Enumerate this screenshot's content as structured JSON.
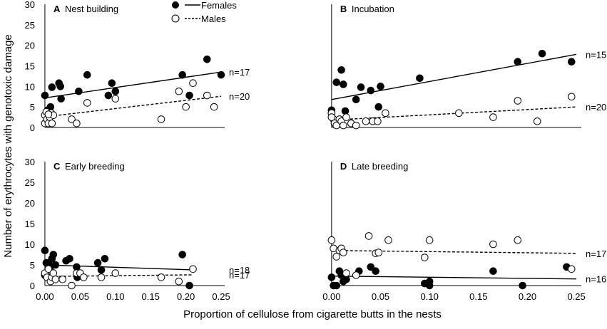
{
  "chart_data": {
    "type": "scatter",
    "ylabel": "Number of erythrocytes with genotoxic damage",
    "xlabel": "Proportion of cellulose from cigarette butts in the nests",
    "x_ticks": [
      "0.00",
      "0.05",
      "0.10",
      "0.15",
      "0.20",
      "0.25"
    ],
    "x_tick_values": [
      0,
      0.05,
      0.1,
      0.15,
      0.2,
      0.25
    ],
    "y_ticks": [
      "0",
      "5",
      "10",
      "15",
      "20",
      "25",
      "30"
    ],
    "y_tick_values": [
      0,
      5,
      10,
      15,
      20,
      25,
      30
    ],
    "xlim": [
      -0.005,
      0.255
    ],
    "ylim": [
      0,
      30
    ],
    "legend": {
      "position": "top-left",
      "females": "Females",
      "males": "Males"
    },
    "panels": [
      {
        "letter": "A",
        "title": "Nest building",
        "females": {
          "n_label": "n=17",
          "points": [
            [
              0.0,
              7.8
            ],
            [
              0.002,
              3.5
            ],
            [
              0.004,
              4.2
            ],
            [
              0.008,
              5.0
            ],
            [
              0.01,
              9.8
            ],
            [
              0.02,
              10.8
            ],
            [
              0.022,
              10.0
            ],
            [
              0.023,
              7.0
            ],
            [
              0.048,
              8.8
            ],
            [
              0.06,
              12.8
            ],
            [
              0.09,
              7.8
            ],
            [
              0.095,
              10.8
            ],
            [
              0.1,
              8.8
            ],
            [
              0.195,
              12.8
            ],
            [
              0.205,
              7.8
            ],
            [
              0.23,
              16.6
            ],
            [
              0.25,
              12.8
            ]
          ],
          "line": [
            [
              0.0,
              7.2
            ],
            [
              0.25,
              13.5
            ]
          ]
        },
        "males": {
          "n_label": "n=20",
          "points": [
            [
              0.0,
              1.0
            ],
            [
              0.0,
              3.0
            ],
            [
              0.002,
              3.8
            ],
            [
              0.003,
              2.0
            ],
            [
              0.005,
              1.0
            ],
            [
              0.007,
              2.5
            ],
            [
              0.009,
              3.5
            ],
            [
              0.01,
              1.0
            ],
            [
              0.012,
              3.0
            ],
            [
              0.038,
              2.0
            ],
            [
              0.045,
              1.0
            ],
            [
              0.06,
              6.0
            ],
            [
              0.1,
              7.0
            ],
            [
              0.165,
              2.0
            ],
            [
              0.19,
              8.8
            ],
            [
              0.2,
              5.0
            ],
            [
              0.21,
              10.8
            ],
            [
              0.23,
              7.8
            ],
            [
              0.24,
              5.0
            ],
            [
              0.005,
              3.2
            ]
          ],
          "line": [
            [
              0.0,
              2.6
            ],
            [
              0.25,
              7.6
            ]
          ]
        }
      },
      {
        "letter": "B",
        "title": "Incubation",
        "females": {
          "n_label": "n=15",
          "points": [
            [
              0.0,
              4.2
            ],
            [
              0.005,
              11.0
            ],
            [
              0.01,
              14.0
            ],
            [
              0.012,
              10.5
            ],
            [
              0.014,
              4.0
            ],
            [
              0.025,
              6.8
            ],
            [
              0.03,
              9.8
            ],
            [
              0.04,
              9.0
            ],
            [
              0.048,
              5.0
            ],
            [
              0.05,
              10.0
            ],
            [
              0.09,
              12.0
            ],
            [
              0.19,
              16.0
            ],
            [
              0.215,
              18.0
            ],
            [
              0.245,
              16.0
            ],
            [
              0.0,
              3.5
            ]
          ],
          "line": [
            [
              0.0,
              6.8
            ],
            [
              0.25,
              17.8
            ]
          ]
        },
        "males": {
          "n_label": "n=20",
          "points": [
            [
              0.0,
              3.5
            ],
            [
              0.002,
              2.0
            ],
            [
              0.003,
              1.0
            ],
            [
              0.005,
              0.5
            ],
            [
              0.008,
              2.0
            ],
            [
              0.01,
              1.5
            ],
            [
              0.012,
              0.5
            ],
            [
              0.015,
              2.5
            ],
            [
              0.02,
              1.0
            ],
            [
              0.025,
              0.5
            ],
            [
              0.035,
              1.5
            ],
            [
              0.042,
              1.5
            ],
            [
              0.047,
              1.5
            ],
            [
              0.055,
              3.5
            ],
            [
              0.13,
              3.5
            ],
            [
              0.165,
              2.5
            ],
            [
              0.19,
              6.5
            ],
            [
              0.21,
              1.5
            ],
            [
              0.245,
              7.5
            ],
            [
              0.0,
              2.5
            ]
          ],
          "line": [
            [
              0.0,
              1.8
            ],
            [
              0.25,
              5.0
            ]
          ]
        }
      },
      {
        "letter": "C",
        "title": "Early breeding",
        "females": {
          "n_label": "n=18",
          "points": [
            [
              0.0,
              8.5
            ],
            [
              0.002,
              5.5
            ],
            [
              0.005,
              5.5
            ],
            [
              0.007,
              2.0
            ],
            [
              0.008,
              4.5
            ],
            [
              0.01,
              6.5
            ],
            [
              0.012,
              7.5
            ],
            [
              0.015,
              5.0
            ],
            [
              0.03,
              6.0
            ],
            [
              0.035,
              6.5
            ],
            [
              0.045,
              4.5
            ],
            [
              0.046,
              2.0
            ],
            [
              0.075,
              5.5
            ],
            [
              0.08,
              3.8
            ],
            [
              0.085,
              6.5
            ],
            [
              0.195,
              7.5
            ],
            [
              0.205,
              0.0
            ],
            [
              0.0,
              2.5
            ]
          ],
          "line": [
            [
              0.0,
              5.0
            ],
            [
              0.21,
              3.8
            ]
          ]
        },
        "males": {
          "n_label": "n=17",
          "points": [
            [
              0.0,
              3.0
            ],
            [
              0.003,
              2.0
            ],
            [
              0.005,
              4.0
            ],
            [
              0.008,
              1.0
            ],
            [
              0.01,
              2.0
            ],
            [
              0.012,
              3.0
            ],
            [
              0.015,
              1.5
            ],
            [
              0.025,
              1.5
            ],
            [
              0.038,
              0.0
            ],
            [
              0.045,
              3.0
            ],
            [
              0.05,
              3.0
            ],
            [
              0.055,
              2.0
            ],
            [
              0.08,
              2.0
            ],
            [
              0.1,
              3.0
            ],
            [
              0.165,
              2.0
            ],
            [
              0.19,
              1.0
            ],
            [
              0.21,
              4.0
            ]
          ],
          "line": [
            [
              0.0,
              2.2
            ],
            [
              0.21,
              2.6
            ]
          ]
        }
      },
      {
        "letter": "D",
        "title": "Late breeding",
        "females": {
          "n_label": "n=16",
          "points": [
            [
              0.0,
              2.0
            ],
            [
              0.002,
              0.0
            ],
            [
              0.005,
              0.0
            ],
            [
              0.008,
              3.5
            ],
            [
              0.01,
              2.5
            ],
            [
              0.012,
              1.0
            ],
            [
              0.015,
              1.5
            ],
            [
              0.028,
              3.5
            ],
            [
              0.04,
              4.5
            ],
            [
              0.045,
              3.5
            ],
            [
              0.095,
              0.5
            ],
            [
              0.1,
              0.0
            ],
            [
              0.1,
              1.0
            ],
            [
              0.165,
              3.5
            ],
            [
              0.195,
              0.0
            ],
            [
              0.24,
              4.5
            ]
          ],
          "line": [
            [
              0.0,
              2.3
            ],
            [
              0.25,
              1.6
            ]
          ]
        },
        "males": {
          "n_label": "n=17",
          "points": [
            [
              0.0,
              11.0
            ],
            [
              0.002,
              9.0
            ],
            [
              0.005,
              7.0
            ],
            [
              0.008,
              8.5
            ],
            [
              0.01,
              9.0
            ],
            [
              0.012,
              8.0
            ],
            [
              0.015,
              3.0
            ],
            [
              0.025,
              2.5
            ],
            [
              0.038,
              12.0
            ],
            [
              0.045,
              7.8
            ],
            [
              0.048,
              8.0
            ],
            [
              0.058,
              11.0
            ],
            [
              0.095,
              6.8
            ],
            [
              0.1,
              11.0
            ],
            [
              0.165,
              10.0
            ],
            [
              0.19,
              11.0
            ],
            [
              0.245,
              4.0
            ]
          ],
          "line": [
            [
              0.0,
              8.5
            ],
            [
              0.25,
              7.8
            ]
          ]
        }
      }
    ]
  }
}
